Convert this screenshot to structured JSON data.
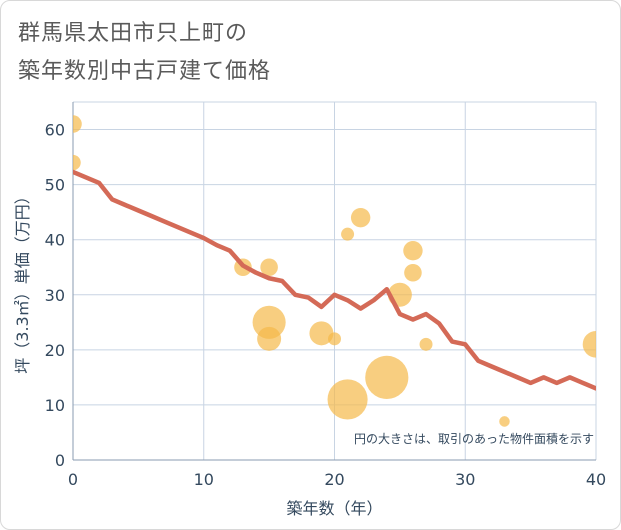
{
  "title_line1": "群馬県太田市只上町の",
  "title_line2": "築年数別中古戸建て価格",
  "colors": {
    "line": "#d46a57",
    "bubble": "#f5b94a",
    "grid": "#c8d4e3",
    "text": "#34495e"
  },
  "chart_data": {
    "type": "scatter",
    "xlabel": "築年数（年）",
    "ylabel": "坪（3.3㎡）単価（万円）",
    "xlim": [
      0,
      40
    ],
    "ylim": [
      0,
      65
    ],
    "xticks": [
      "0",
      "10",
      "20",
      "30",
      "40"
    ],
    "yticks": [
      "0",
      "10",
      "20",
      "30",
      "40",
      "50",
      "60"
    ],
    "grid": true,
    "note": "円の大きさは、取引のあった物件面積を示す",
    "trend": {
      "x": [
        0,
        1,
        2,
        3,
        4,
        5,
        6,
        7,
        8,
        9,
        10,
        11,
        12,
        13,
        14,
        15,
        16,
        17,
        18,
        19,
        20,
        21,
        22,
        23,
        24,
        25,
        26,
        27,
        28,
        29,
        30,
        31,
        32,
        33,
        34,
        35,
        36,
        37,
        38,
        39,
        40
      ],
      "y": [
        52.3,
        51.3,
        50.3,
        47.3,
        46.3,
        45.3,
        44.3,
        43.3,
        42.3,
        41.3,
        40.3,
        39.0,
        38.0,
        35.3,
        34.0,
        33.0,
        32.5,
        30.0,
        29.5,
        27.8,
        30.0,
        29.0,
        27.5,
        29.0,
        31.0,
        26.5,
        25.5,
        26.5,
        24.8,
        21.5,
        21.0,
        18.0,
        17.0,
        16.0,
        15.0,
        14.0,
        15.0,
        14.0,
        15.0,
        14.0,
        13.0
      ]
    },
    "bubbles": [
      {
        "x": 0,
        "y": 61,
        "size": 2
      },
      {
        "x": 0,
        "y": 54,
        "size": 1.5
      },
      {
        "x": 13,
        "y": 35,
        "size": 2
      },
      {
        "x": 15,
        "y": 35,
        "size": 2
      },
      {
        "x": 15,
        "y": 25,
        "size": 8
      },
      {
        "x": 15,
        "y": 22,
        "size": 4
      },
      {
        "x": 19,
        "y": 23,
        "size": 4
      },
      {
        "x": 20,
        "y": 22,
        "size": 1
      },
      {
        "x": 21,
        "y": 41,
        "size": 1
      },
      {
        "x": 21,
        "y": 11,
        "size": 12
      },
      {
        "x": 22,
        "y": 44,
        "size": 2.5
      },
      {
        "x": 24,
        "y": 15,
        "size": 14
      },
      {
        "x": 25,
        "y": 30,
        "size": 4
      },
      {
        "x": 26,
        "y": 38,
        "size": 2.5
      },
      {
        "x": 26,
        "y": 34,
        "size": 2
      },
      {
        "x": 27,
        "y": 21,
        "size": 1
      },
      {
        "x": 33,
        "y": 7,
        "size": 0.6
      },
      {
        "x": 40,
        "y": 21,
        "size": 5
      }
    ]
  }
}
